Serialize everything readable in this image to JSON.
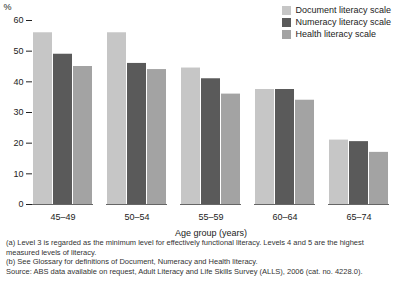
{
  "chart_data": {
    "type": "bar",
    "ylabel": "%",
    "xlabel": "Age group (years)",
    "categories": [
      "45–49",
      "50–54",
      "55–59",
      "60–64",
      "65–74"
    ],
    "series": [
      {
        "name": "Document literacy scale",
        "color": "#c6c6c6",
        "values": [
          56,
          56,
          44.5,
          37.5,
          21
        ]
      },
      {
        "name": "Numeracy literacy scale",
        "color": "#5a5a5a",
        "values": [
          49,
          46,
          41,
          37.5,
          20.5
        ]
      },
      {
        "name": "Health literacy scale",
        "color": "#a3a3a3",
        "values": [
          45,
          44,
          36,
          34,
          17
        ]
      }
    ],
    "ylim": [
      0,
      60
    ],
    "yticks": [
      0,
      10,
      20,
      30,
      40,
      50,
      60
    ],
    "legend": "upper right",
    "annotations": [
      "(a) Level 3 is regarded as the minimum level for effectively functional literacy. Levels 4 and 5 are the highest measured levels of literacy.",
      "(b) See Glossary for definitions of Document, Numeracy and Health literacy.",
      "Source: ABS data available on request, Adult Literacy and Life Skills Survey (ALLS), 2006 (cat. no. 4228.0)."
    ]
  }
}
